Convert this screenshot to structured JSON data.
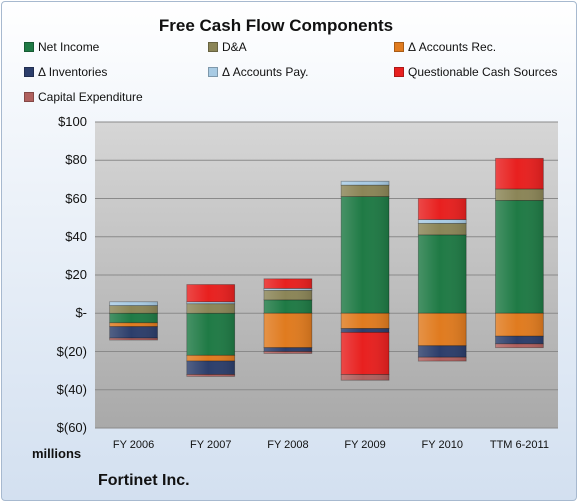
{
  "chart_data": {
    "type": "bar",
    "stacked": true,
    "title": "Free Cash Flow Components",
    "categories": [
      "FY 2006",
      "FY 2007",
      "FY 2008",
      "FY 2009",
      "FY 2010",
      "TTM 6-2011"
    ],
    "ylim": [
      -60,
      100
    ],
    "yticks": [
      100,
      80,
      60,
      40,
      20,
      0,
      -20,
      -40,
      -60
    ],
    "ytick_labels": [
      "$100",
      "$80",
      "$60",
      "$40",
      "$20",
      "$-",
      "$(20)",
      "$(40)",
      "$(60)"
    ],
    "units_label": "millions",
    "grid": true,
    "legend_position": "top",
    "series": [
      {
        "name": "Net Income",
        "color": "#1f7a45",
        "values": [
          -5,
          -22,
          7,
          61,
          41,
          59
        ]
      },
      {
        "name": "D&A",
        "color": "#8b8557",
        "values": [
          4,
          5,
          5,
          6,
          6,
          6
        ]
      },
      {
        "name": "Δ Accounts Rec.",
        "color": "#e07b1f",
        "values": [
          -2,
          -3,
          -18,
          -8,
          -17,
          -12
        ]
      },
      {
        "name": "Δ Inventories",
        "color": "#2c3e6b",
        "values": [
          -6,
          -7,
          -2,
          -2,
          -6,
          -4
        ]
      },
      {
        "name": "Δ Accounts Pay.",
        "color": "#a8cbe4",
        "values": [
          2,
          1,
          1,
          2,
          2,
          0
        ]
      },
      {
        "name": "Questionable Cash Sources",
        "color": "#e8201f",
        "values": [
          0,
          9,
          5,
          -22,
          11,
          16
        ]
      },
      {
        "name": "Capital Expenditure",
        "color": "#b0605e",
        "values": [
          -1,
          -1,
          -1,
          -3,
          -2,
          -2
        ]
      }
    ]
  },
  "footer": {
    "company": "Fortinet Inc."
  }
}
